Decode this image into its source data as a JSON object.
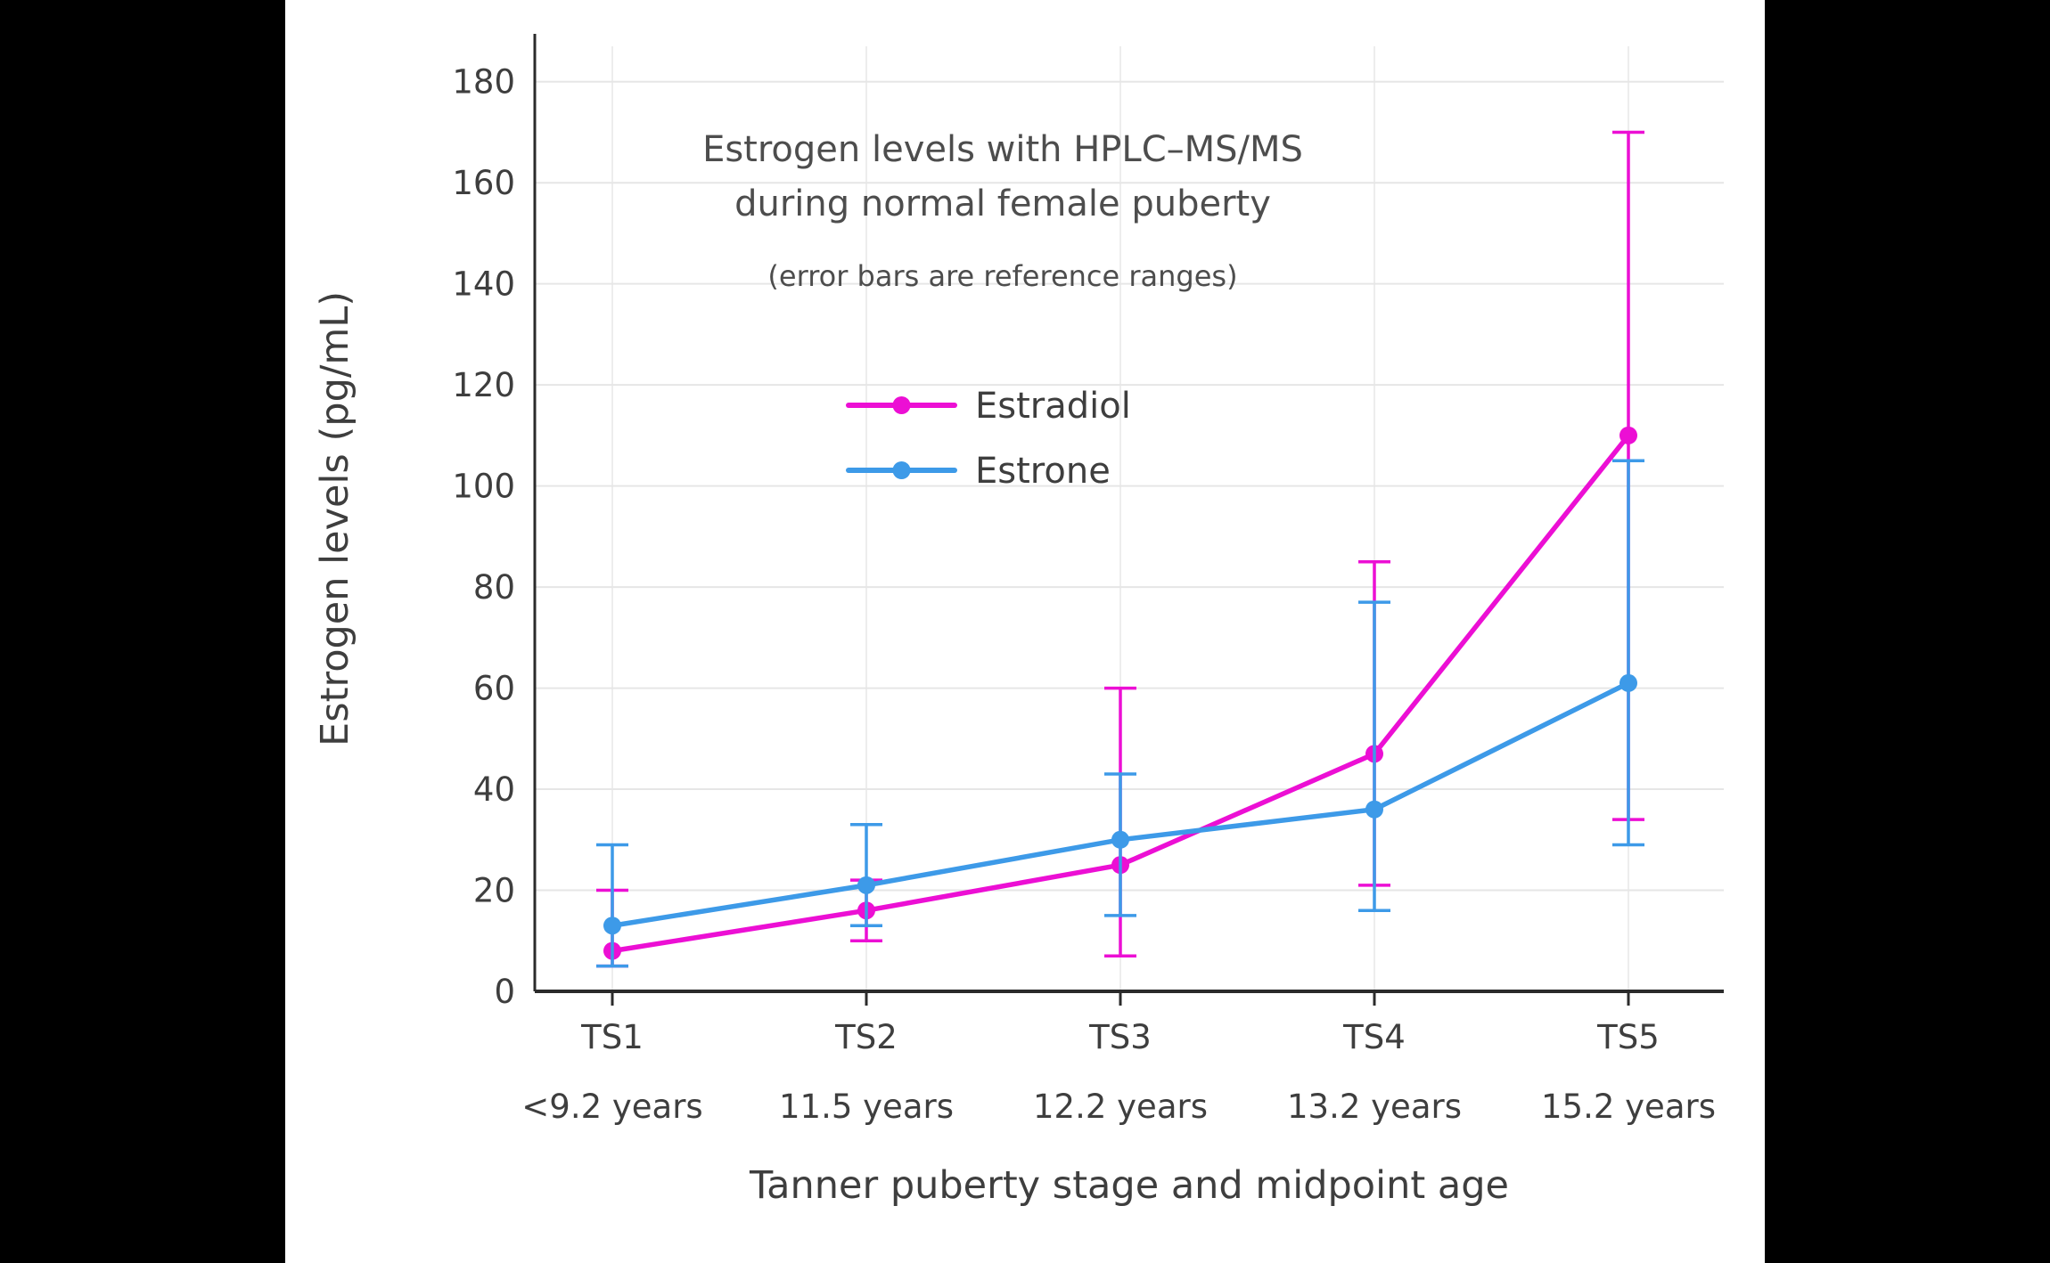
{
  "page": {
    "background_color": "#000000",
    "panel_background_color": "#ffffff"
  },
  "chart_data": {
    "type": "line",
    "title_lines": [
      "Estrogen levels with HPLC–MS/MS",
      "during normal female puberty"
    ],
    "subtitle": "(error bars are reference ranges)",
    "xlabel": "Tanner puberty stage and midpoint age",
    "ylabel": "Estrogen levels (pg/mL)",
    "categories": [
      "TS1",
      "TS2",
      "TS3",
      "TS4",
      "TS5"
    ],
    "category_sublabels": [
      "<9.2 years",
      "11.5 years",
      "12.2 years",
      "13.2 years",
      "15.2 years"
    ],
    "ylim": [
      0,
      187
    ],
    "yticks": [
      0,
      20,
      40,
      60,
      80,
      100,
      120,
      140,
      160,
      180
    ],
    "grid": true,
    "legend_position": "inside-top-left",
    "series": [
      {
        "name": "Estradiol",
        "color": "#EC0FD4",
        "values": [
          8,
          16,
          25,
          47,
          110
        ],
        "error_low": [
          5,
          10,
          7,
          21,
          34
        ],
        "error_high": [
          20,
          22,
          60,
          85,
          170
        ]
      },
      {
        "name": "Estrone",
        "color": "#3D9AE8",
        "values": [
          13,
          21,
          30,
          36,
          61
        ],
        "error_low": [
          5,
          13,
          15,
          16,
          29
        ],
        "error_high": [
          29,
          33,
          43,
          77,
          105
        ]
      }
    ],
    "style": {
      "text_color": "#3e3e3e",
      "title_color": "#4d4d4d",
      "grid_color": "#e6e6e6",
      "grid_color_vertical": "#ededed",
      "axis_color": "#2b2b2b"
    }
  }
}
